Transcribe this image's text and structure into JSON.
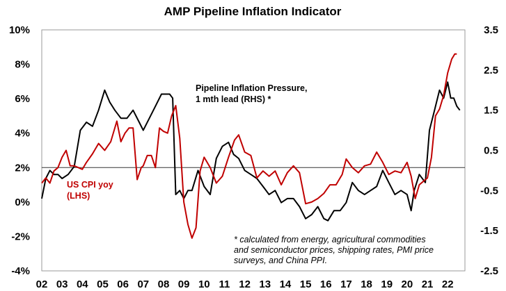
{
  "chart_data": {
    "type": "line",
    "title": "AMP Pipeline Inflation Indicator",
    "x_tick_labels": [
      "02",
      "03",
      "04",
      "05",
      "06",
      "07",
      "08",
      "09",
      "10",
      "11",
      "12",
      "13",
      "14",
      "15",
      "16",
      "17",
      "18",
      "19",
      "20",
      "21",
      "22"
    ],
    "x_range": [
      2002.0,
      2022.85
    ],
    "left_axis": {
      "tick_labels": [
        "10%",
        "8%",
        "6%",
        "4%",
        "2%",
        "0%",
        "-2%",
        "-4%"
      ],
      "ylim": [
        -4,
        10
      ]
    },
    "right_axis": {
      "tick_labels": [
        "3.5",
        "2.5",
        "1.5",
        "0.5",
        "-0.5",
        "-1.5",
        "-2.5"
      ],
      "ylim": [
        -2.5,
        3.5
      ]
    },
    "reference_line": 2,
    "annotations": {
      "black_label_line1": "Pipeline Inflation Pressure,",
      "black_label_line2": "1 mth lead (RHS) *",
      "red_label_line1": "US CPI yoy",
      "red_label_line2": "(LHS)",
      "footnote_line1": "* calculated from energy, agricultural commodities",
      "footnote_line2": "and semiconductor prices, shipping rates, PMI price",
      "footnote_line3": "surveys, and China PPI."
    },
    "series": [
      {
        "name": "Pipeline Inflation Pressure, 1 mth lead (RHS) *",
        "axis": "right",
        "color": "#000000",
        "x": [
          2002.0,
          2002.2,
          2002.4,
          2002.6,
          2002.8,
          2003.0,
          2003.3,
          2003.6,
          2003.9,
          2004.2,
          2004.5,
          2004.8,
          2005.1,
          2005.35,
          2005.6,
          2005.9,
          2006.2,
          2006.5,
          2006.8,
          2007.0,
          2007.3,
          2007.6,
          2007.9,
          2008.1,
          2008.3,
          2008.45,
          2008.6,
          2008.8,
          2009.0,
          2009.2,
          2009.4,
          2009.7,
          2010.0,
          2010.3,
          2010.6,
          2010.9,
          2011.2,
          2011.45,
          2011.7,
          2012.0,
          2012.3,
          2012.6,
          2012.9,
          2013.2,
          2013.5,
          2013.8,
          2014.1,
          2014.4,
          2014.7,
          2015.0,
          2015.3,
          2015.6,
          2015.9,
          2016.1,
          2016.4,
          2016.7,
          2017.0,
          2017.3,
          2017.6,
          2017.9,
          2018.2,
          2018.5,
          2018.8,
          2019.1,
          2019.4,
          2019.7,
          2020.0,
          2020.2,
          2020.35,
          2020.6,
          2020.9,
          2021.1,
          2021.35,
          2021.6,
          2021.8,
          2022.0,
          2022.15,
          2022.3,
          2022.45,
          2022.6
        ],
        "values": [
          -0.7,
          -0.2,
          0.0,
          -0.1,
          -0.1,
          -0.2,
          -0.1,
          0.1,
          1.0,
          1.2,
          1.1,
          1.5,
          2.0,
          1.7,
          1.5,
          1.3,
          1.3,
          1.5,
          1.2,
          1.0,
          1.3,
          1.6,
          1.9,
          1.9,
          1.9,
          1.8,
          -0.6,
          -0.5,
          -0.7,
          -0.5,
          -0.5,
          0.0,
          -0.4,
          -0.6,
          0.3,
          0.6,
          0.7,
          0.4,
          0.3,
          0.0,
          -0.1,
          -0.2,
          -0.4,
          -0.6,
          -0.5,
          -0.8,
          -0.7,
          -0.7,
          -0.9,
          -1.2,
          -1.1,
          -0.9,
          -1.2,
          -1.25,
          -1.0,
          -1.0,
          -0.8,
          -0.3,
          -0.5,
          -0.6,
          -0.5,
          -0.4,
          0.0,
          -0.3,
          -0.6,
          -0.5,
          -0.6,
          -1.0,
          -0.5,
          -0.1,
          -0.3,
          1.0,
          1.5,
          2.0,
          1.8,
          2.2,
          1.8,
          1.8,
          1.6,
          1.5
        ]
      },
      {
        "name": "US CPI yoy (LHS)",
        "axis": "left",
        "color": "#c00000",
        "x": [
          2002.0,
          2002.2,
          2002.4,
          2002.6,
          2002.8,
          2003.0,
          2003.2,
          2003.4,
          2003.6,
          2003.8,
          2004.0,
          2004.2,
          2004.5,
          2004.8,
          2005.1,
          2005.4,
          2005.7,
          2005.9,
          2006.1,
          2006.3,
          2006.5,
          2006.7,
          2006.9,
          2007.0,
          2007.2,
          2007.4,
          2007.6,
          2007.8,
          2008.0,
          2008.2,
          2008.4,
          2008.6,
          2008.8,
          2009.0,
          2009.2,
          2009.4,
          2009.6,
          2009.8,
          2010.0,
          2010.3,
          2010.6,
          2010.9,
          2011.2,
          2011.5,
          2011.7,
          2012.0,
          2012.3,
          2012.6,
          2012.9,
          2013.2,
          2013.5,
          2013.8,
          2014.1,
          2014.4,
          2014.7,
          2015.0,
          2015.3,
          2015.6,
          2015.9,
          2016.2,
          2016.5,
          2016.8,
          2017.0,
          2017.3,
          2017.6,
          2017.9,
          2018.2,
          2018.5,
          2018.8,
          2019.1,
          2019.4,
          2019.7,
          2020.0,
          2020.2,
          2020.4,
          2020.6,
          2020.8,
          2021.0,
          2021.2,
          2021.4,
          2021.6,
          2021.8,
          2022.0,
          2022.2,
          2022.35,
          2022.45
        ],
        "values": [
          1.1,
          1.4,
          1.1,
          1.8,
          2.0,
          2.6,
          3.0,
          2.1,
          2.1,
          2.0,
          1.9,
          2.3,
          2.8,
          3.4,
          3.0,
          3.5,
          4.7,
          3.5,
          4.0,
          4.3,
          4.3,
          1.3,
          2.0,
          2.1,
          2.7,
          2.7,
          2.0,
          4.3,
          4.1,
          4.0,
          5.0,
          5.6,
          3.7,
          0.0,
          -1.3,
          -2.1,
          -1.5,
          1.8,
          2.6,
          2.0,
          1.1,
          1.5,
          2.6,
          3.6,
          3.9,
          2.9,
          2.7,
          1.4,
          1.8,
          1.5,
          1.8,
          1.0,
          1.7,
          2.1,
          1.7,
          -0.1,
          0.0,
          0.2,
          0.5,
          1.0,
          1.0,
          1.6,
          2.5,
          2.0,
          1.7,
          2.1,
          2.2,
          2.9,
          2.3,
          1.6,
          1.8,
          1.7,
          2.3,
          1.5,
          0.2,
          1.0,
          1.2,
          1.4,
          2.6,
          5.0,
          5.4,
          6.2,
          7.5,
          8.3,
          8.6,
          8.6
        ]
      }
    ]
  }
}
